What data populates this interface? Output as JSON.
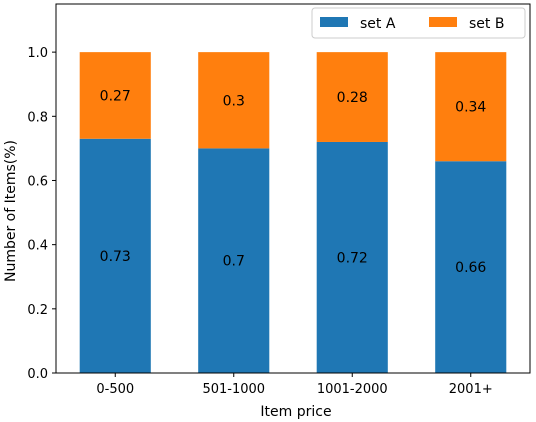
{
  "chart_data": {
    "type": "bar",
    "stacked": true,
    "categories": [
      "0-500",
      "501-1000",
      "1001-2000",
      "2001+"
    ],
    "series": [
      {
        "name": "set A",
        "color": "#1f77b4",
        "values": [
          0.73,
          0.7,
          0.72,
          0.66
        ]
      },
      {
        "name": "set B",
        "color": "#ff7f0e",
        "values": [
          0.27,
          0.3,
          0.28,
          0.34
        ]
      }
    ],
    "data_labels": [
      [
        "0.73",
        "0.7",
        "0.72",
        "0.66"
      ],
      [
        "0.27",
        "0.3",
        "0.28",
        "0.34"
      ]
    ],
    "title": "",
    "xlabel": "Item price",
    "ylabel": "Number of Items(%)",
    "ylim": [
      0,
      1.15
    ],
    "yticks": [
      0.0,
      0.2,
      0.4,
      0.6,
      0.8,
      1.0
    ],
    "ytick_labels": [
      "0.0",
      "0.2",
      "0.4",
      "0.6",
      "0.8",
      "1.0"
    ],
    "grid": false,
    "legend_position": "top-right",
    "legend_columns": 2
  }
}
